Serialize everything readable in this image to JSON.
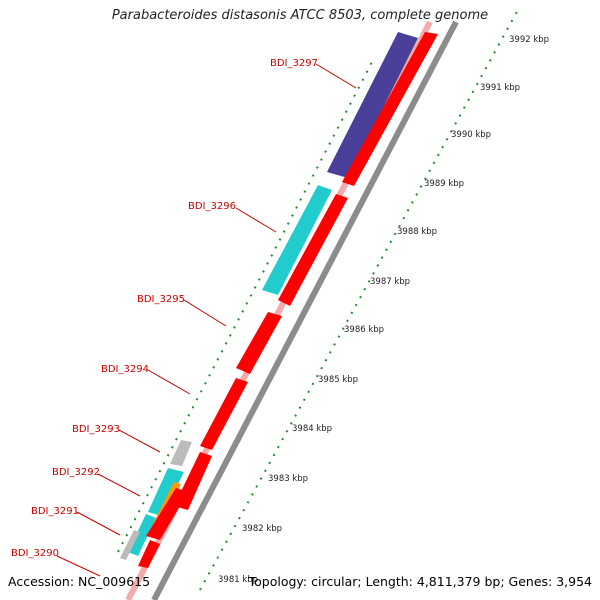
{
  "title": "Parabacteroides distasonis ATCC 8503, complete genome",
  "accession_text": "Accession: NC_009615",
  "info_text": "Topology: circular; Length: 4,811,379 bp; Genes: 3,954",
  "colors": {
    "forward_strand": "#ff0000",
    "reverse_strand": "#ff0000",
    "purple_gene": "#4b4099",
    "cyan_gene": "#22cccc",
    "orange_gene": "#ff9900",
    "gray_gene": "#bbbbbb",
    "tick_green": "#228b22",
    "label_red": "#cc0000"
  },
  "ticks": [
    "3981 kbp",
    "3982 kbp",
    "3983 kbp",
    "3984 kbp",
    "3985 kbp",
    "3986 kbp",
    "3987 kbp",
    "3988 kbp",
    "3989 kbp",
    "3990 kbp",
    "3991 kbp",
    "3992 kbp"
  ],
  "gene_labels": [
    "BDI_3297",
    "BDI_3296",
    "BDI_3295",
    "BDI_3294",
    "BDI_3293",
    "BDI_3292",
    "BDI_3291",
    "BDI_3290"
  ]
}
